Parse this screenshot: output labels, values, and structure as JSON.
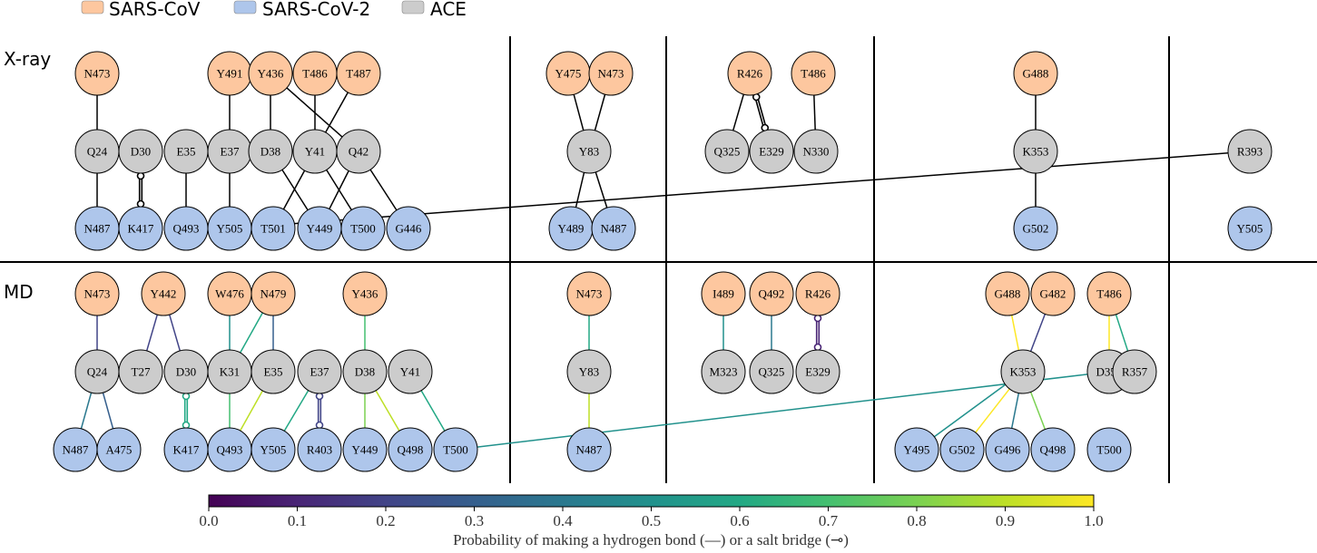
{
  "legend": [
    {
      "label": "SARS-CoV",
      "color": "#fdc79f"
    },
    {
      "label": "SARS-CoV-2",
      "color": "#aec6eb"
    },
    {
      "label": "ACE",
      "color": "#cccccc"
    }
  ],
  "row_labels": [
    "X-ray",
    "MD"
  ],
  "colorbar": {
    "ticks": [
      "0.0",
      "0.1",
      "0.2",
      "0.3",
      "0.4",
      "0.5",
      "0.6",
      "0.7",
      "0.8",
      "0.9",
      "1.0"
    ],
    "title": "Probability of making a hydrogen bond (—) or a salt bridge (⊸)"
  },
  "groups": {
    "sars": [
      "N473",
      "Y491",
      "Y436",
      "T486",
      "T487",
      "Y475",
      "N473",
      "R426",
      "T486",
      "G488",
      "N473",
      "Y442",
      "W476",
      "N479",
      "Y436",
      "N473",
      "I489",
      "Q492",
      "R426",
      "G488",
      "G482",
      "T486"
    ],
    "ace": [
      "Q24",
      "D30",
      "E35",
      "E37",
      "D38",
      "Y41",
      "Q42",
      "Y83",
      "Q325",
      "E329",
      "N330",
      "K353",
      "R393",
      "Q24",
      "T27",
      "D30",
      "K31",
      "E35",
      "E37",
      "D38",
      "Y41",
      "Y83",
      "M323",
      "Q325",
      "E329",
      "K353",
      "D355",
      "R357"
    ],
    "cov2": [
      "N487",
      "K417",
      "Q493",
      "Y505",
      "T501",
      "Y449",
      "T500",
      "G446",
      "Y489",
      "N487",
      "G502",
      "Y505",
      "N487",
      "A475",
      "K417",
      "Q493",
      "Y505",
      "R403",
      "Y449",
      "Q498",
      "T500",
      "N487",
      "Y495",
      "G502",
      "G496",
      "Q498",
      "T500"
    ]
  },
  "xray_edges": [
    {
      "a": "N473",
      "b": "Q24",
      "type": "hbond"
    },
    {
      "a": "Q24",
      "b": "N487",
      "type": "hbond"
    },
    {
      "a": "D30",
      "b": "K417",
      "type": "salt"
    },
    {
      "a": "E35",
      "b": "Q493",
      "type": "hbond"
    },
    {
      "a": "Y491",
      "b": "E37",
      "type": "hbond"
    },
    {
      "a": "E37",
      "b": "Y505",
      "type": "hbond"
    },
    {
      "a": "Y436",
      "b": "D38",
      "type": "hbond"
    },
    {
      "a": "Y436",
      "b": "Q42",
      "type": "hbond"
    },
    {
      "a": "T486",
      "b": "Y41",
      "type": "hbond"
    },
    {
      "a": "T487",
      "b": "Y41",
      "type": "hbond"
    },
    {
      "a": "D38",
      "b": "Y449",
      "type": "hbond"
    },
    {
      "a": "Y41",
      "b": "T501",
      "type": "hbond"
    },
    {
      "a": "Y41",
      "b": "T500",
      "type": "hbond"
    },
    {
      "a": "Q42",
      "b": "Y449",
      "type": "hbond"
    },
    {
      "a": "Q42",
      "b": "G446",
      "type": "hbond"
    },
    {
      "a": "Y475",
      "b": "Y83",
      "type": "hbond"
    },
    {
      "a": "N473",
      "b": "Y83",
      "type": "hbond"
    },
    {
      "a": "Y83",
      "b": "Y489",
      "type": "hbond"
    },
    {
      "a": "Y83",
      "b": "N487",
      "type": "hbond"
    },
    {
      "a": "R426",
      "b": "Q325",
      "type": "hbond"
    },
    {
      "a": "R426",
      "b": "E329",
      "type": "salt"
    },
    {
      "a": "T486",
      "b": "N330",
      "type": "hbond"
    },
    {
      "a": "G488",
      "b": "K353",
      "type": "hbond"
    },
    {
      "a": "K353",
      "b": "G502",
      "type": "hbond"
    },
    {
      "a": "R393",
      "b": "Y505",
      "type": "hbond"
    }
  ],
  "md_edges": [
    {
      "a": "N473",
      "b": "Q24",
      "type": "hbond",
      "p": 0.2
    },
    {
      "a": "Q24",
      "b": "N487",
      "type": "hbond",
      "p": 0.35
    },
    {
      "a": "Q24",
      "b": "A475",
      "type": "hbond",
      "p": 0.3
    },
    {
      "a": "Y442",
      "b": "T27",
      "type": "hbond",
      "p": 0.2
    },
    {
      "a": "Y442",
      "b": "D30",
      "type": "hbond",
      "p": 0.22
    },
    {
      "a": "D30",
      "b": "K417",
      "type": "salt",
      "p": 0.58
    },
    {
      "a": "W476",
      "b": "K31",
      "type": "hbond",
      "p": 0.5
    },
    {
      "a": "N479",
      "b": "K31",
      "type": "hbond",
      "p": 0.58
    },
    {
      "a": "N479",
      "b": "E35",
      "type": "hbond",
      "p": 0.3
    },
    {
      "a": "K31",
      "b": "Q493",
      "type": "hbond",
      "p": 0.72
    },
    {
      "a": "E35",
      "b": "Q493",
      "type": "hbond",
      "p": 0.92
    },
    {
      "a": "E37",
      "b": "Y505",
      "type": "hbond",
      "p": 0.6
    },
    {
      "a": "E37",
      "b": "R403",
      "type": "salt",
      "p": 0.18
    },
    {
      "a": "Y436",
      "b": "D38",
      "type": "hbond",
      "p": 0.65
    },
    {
      "a": "D38",
      "b": "Y449",
      "type": "hbond",
      "p": 0.82
    },
    {
      "a": "D38",
      "b": "Q498",
      "type": "hbond",
      "p": 0.85
    },
    {
      "a": "Y41",
      "b": "T500",
      "type": "hbond",
      "p": 0.6
    },
    {
      "a": "N473",
      "b": "Y83",
      "type": "hbond",
      "p": 0.6
    },
    {
      "a": "Y83",
      "b": "N487",
      "type": "hbond",
      "p": 0.92
    },
    {
      "a": "I489",
      "b": "M323",
      "type": "hbond",
      "p": 0.5
    },
    {
      "a": "Q492",
      "b": "Q325",
      "type": "hbond",
      "p": 0.35
    },
    {
      "a": "R426",
      "b": "E329",
      "type": "salt",
      "p": 0.05
    },
    {
      "a": "G488",
      "b": "K353",
      "type": "hbond",
      "p": 0.95
    },
    {
      "a": "G482",
      "b": "K353",
      "type": "hbond",
      "p": 0.18
    },
    {
      "a": "T486",
      "b": "D355",
      "type": "hbond",
      "p": 0.95
    },
    {
      "a": "T486",
      "b": "R357",
      "type": "hbond",
      "p": 0.55
    },
    {
      "a": "K353",
      "b": "Y495",
      "type": "hbond",
      "p": 0.5
    },
    {
      "a": "K353",
      "b": "G502",
      "type": "hbond",
      "p": 0.95
    },
    {
      "a": "K353",
      "b": "G496",
      "type": "hbond",
      "p": 0.35
    },
    {
      "a": "K353",
      "b": "Q498",
      "type": "hbond",
      "p": 0.8
    },
    {
      "a": "D355",
      "b": "T500",
      "type": "hbond",
      "p": 0.5
    }
  ]
}
